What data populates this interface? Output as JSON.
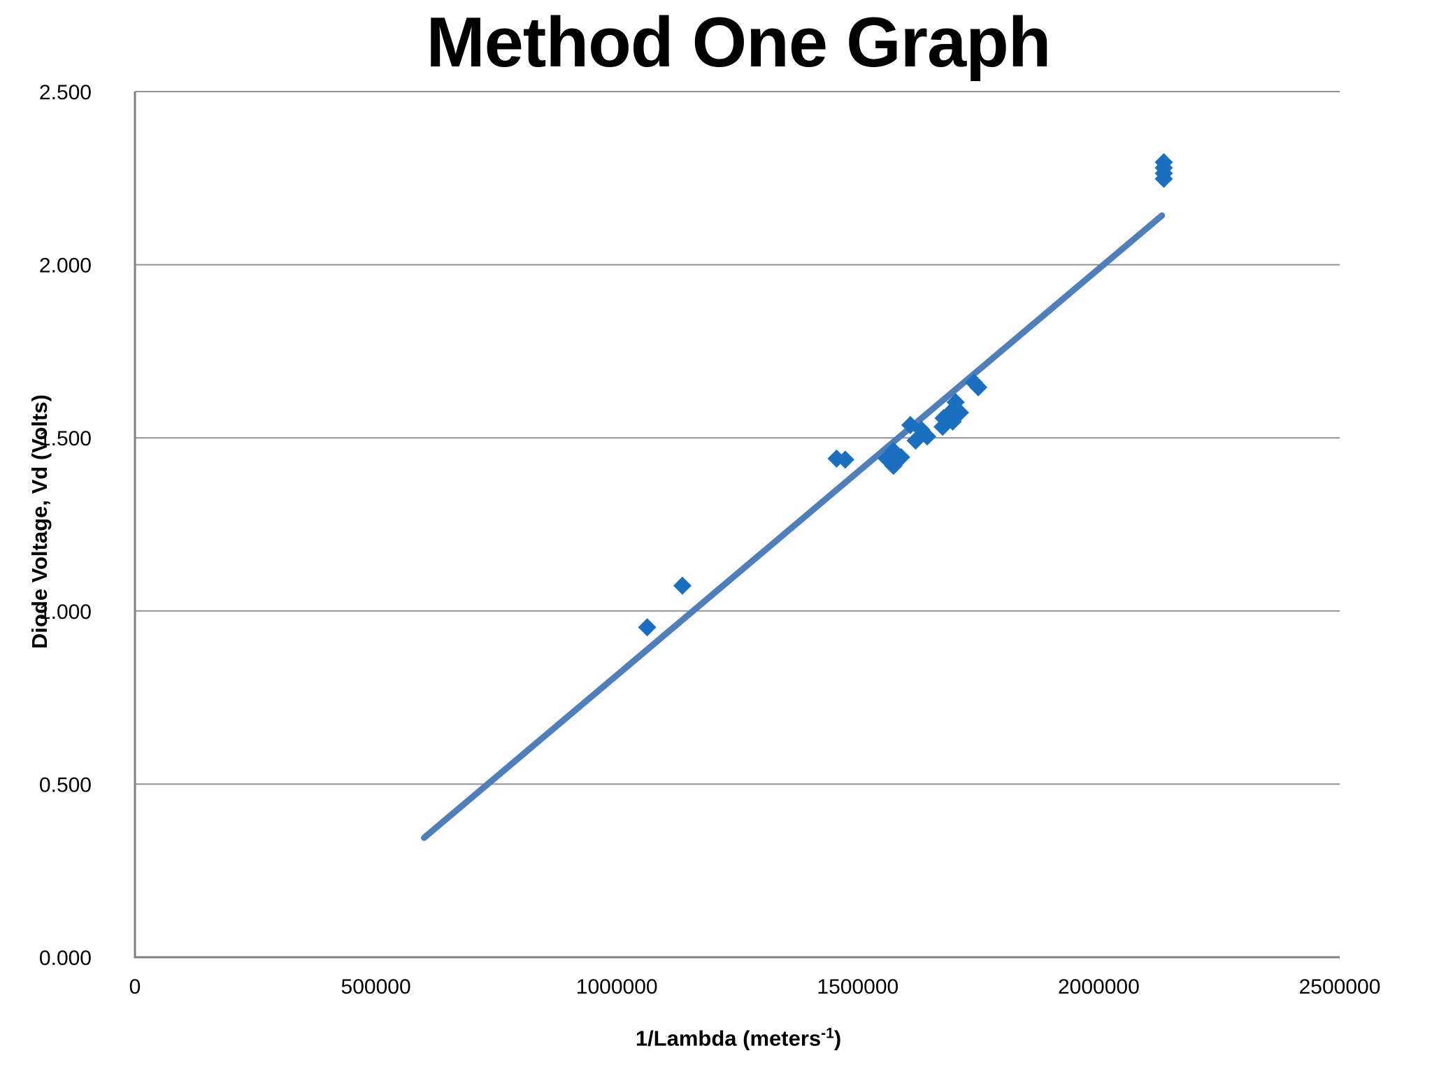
{
  "chart_data": {
    "type": "scatter",
    "title": "Method One Graph",
    "xlabel": "1/Lambda (meters^-1)",
    "xlabel_parts": {
      "pre": "1/Lambda (meters",
      "sup": "-1",
      "post": ")"
    },
    "ylabel": "Diode Voltage, Vd (Volts)",
    "xlim": [
      0,
      2500000
    ],
    "ylim": [
      0.0,
      2.5
    ],
    "x_ticks": [
      0,
      500000,
      1000000,
      1500000,
      2000000,
      2500000
    ],
    "y_ticks": [
      0,
      0.5,
      1.0,
      1.5,
      2.0,
      2.5
    ],
    "x_tick_labels": [
      "0",
      "500000",
      "1000000",
      "1500000",
      "2000000",
      "2500000"
    ],
    "y_tick_labels": [
      "0.000",
      "0.500",
      "1.000",
      "1.500",
      "2.000",
      "2.500"
    ],
    "grid": "horizontal-gridlines",
    "legend": "none",
    "marker": "diamond",
    "series": [
      {
        "name": "diode-voltage-vs-inverse-wavelength",
        "color": "#1a6fc1",
        "points": [
          [
            1063000,
            0.953
          ],
          [
            1136000,
            1.073
          ],
          [
            1456000,
            1.44
          ],
          [
            1474000,
            1.437
          ],
          [
            1574000,
            1.462
          ],
          [
            1560000,
            1.44
          ],
          [
            1590000,
            1.444
          ],
          [
            1574000,
            1.419
          ],
          [
            1609000,
            1.537
          ],
          [
            1632000,
            1.523
          ],
          [
            1644000,
            1.504
          ],
          [
            1620000,
            1.492
          ],
          [
            1703000,
            1.603
          ],
          [
            1696000,
            1.579
          ],
          [
            1712000,
            1.573
          ],
          [
            1678000,
            1.557
          ],
          [
            1697000,
            1.547
          ],
          [
            1676000,
            1.532
          ],
          [
            1741000,
            1.66
          ],
          [
            1750000,
            1.646
          ],
          [
            2135000,
            2.296
          ],
          [
            2135000,
            2.28
          ],
          [
            2135000,
            2.264
          ],
          [
            2135000,
            2.248
          ]
        ]
      }
    ],
    "trendline": {
      "type": "linear",
      "color": "#4e7fbb",
      "x_start": 600000,
      "y_start": 0.345,
      "x_end": 2131000,
      "y_end": 2.142
    }
  },
  "colors": {
    "marker": "#1a6fc1",
    "trendline": "#4e7fbb",
    "gridline": "#919191",
    "axis": "#7f7f7f",
    "text": "#000000",
    "background": "#ffffff"
  }
}
